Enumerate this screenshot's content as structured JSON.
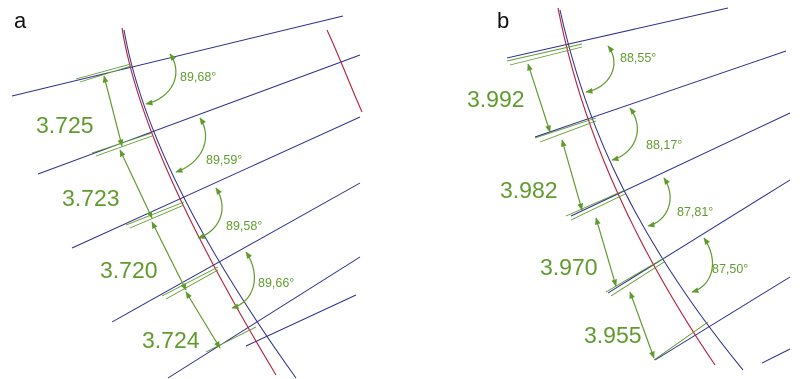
{
  "colors": {
    "lines": "#2b2f8e",
    "curve": "#b3203a",
    "annotation": "#5f9b2c",
    "label": "#111111"
  },
  "panels": [
    {
      "label": "a",
      "distances": [
        "3.725",
        "3.723",
        "3.720",
        "3.724"
      ],
      "angles": [
        "89,68°",
        "89,59°",
        "89,58°",
        "89,66°"
      ]
    },
    {
      "label": "b",
      "distances": [
        "3.992",
        "3.982",
        "3.970",
        "3.955"
      ],
      "angles": [
        "88,55°",
        "88,17°",
        "87,81°",
        "87,50°"
      ]
    }
  ]
}
